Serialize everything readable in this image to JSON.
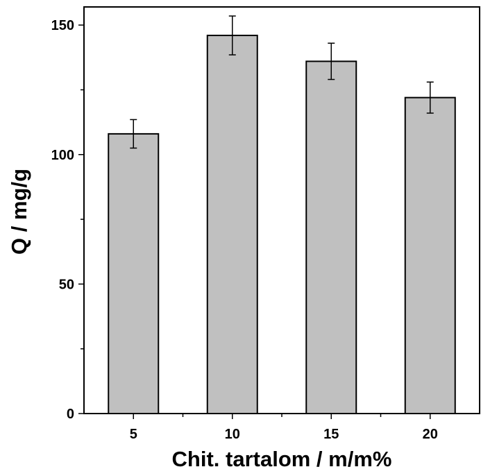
{
  "chart_data": {
    "type": "bar",
    "categories": [
      "5",
      "10",
      "15",
      "20"
    ],
    "values": [
      108,
      146,
      136,
      122
    ],
    "errors": [
      5.5,
      7.5,
      7,
      6
    ],
    "xlabel": "Chit. tartalom / m/m%",
    "ylabel": "Q / mg/g",
    "ylim": [
      0,
      157
    ],
    "yticks": [
      0,
      50,
      100,
      150
    ],
    "grid": false,
    "legend": "none",
    "colors": {
      "bar_fill": "#c0c0c0",
      "bar_stroke": "#000000",
      "axis": "#000000"
    }
  }
}
